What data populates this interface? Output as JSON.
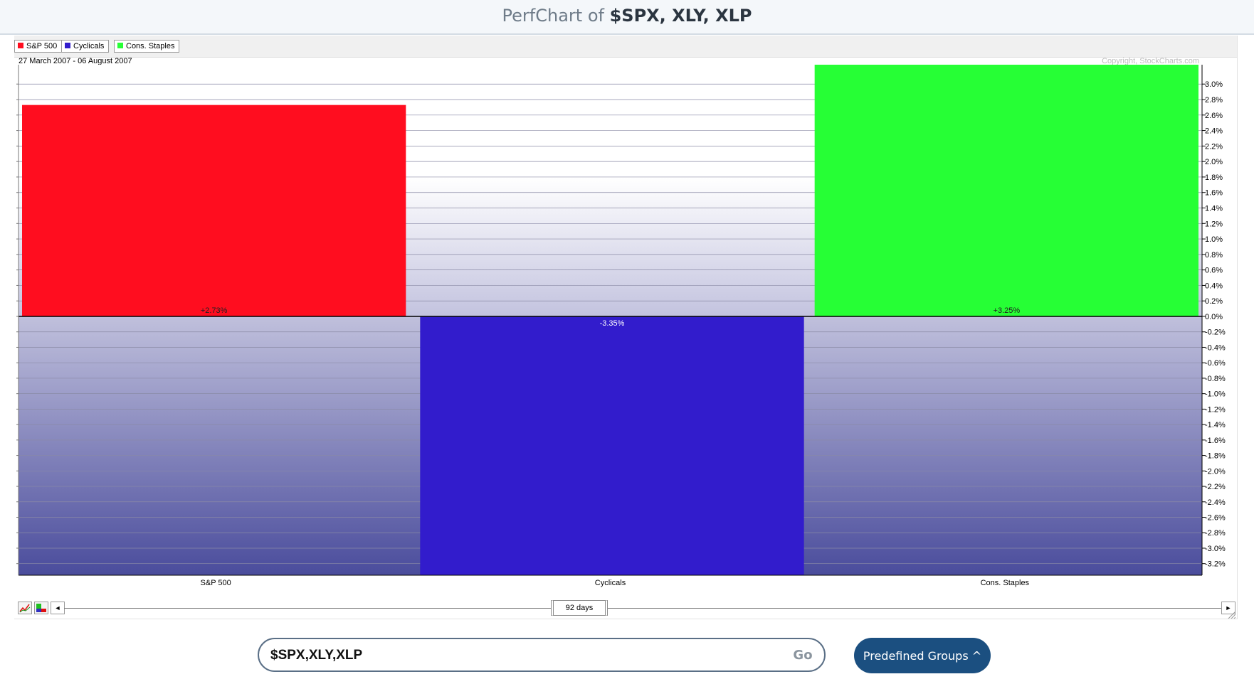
{
  "header": {
    "title_prefix": "PerfChart of",
    "title_symbols": "$SPX, XLY, XLP"
  },
  "legend": {
    "items": [
      {
        "label": "S&P 500",
        "color": "#ff0d1f"
      },
      {
        "label": "Cyclicals",
        "color": "#321ccc"
      },
      {
        "label": "Cons. Staples",
        "color": "#26ff35"
      }
    ]
  },
  "date_range": "27 March 2007 - 06 August 2007",
  "copyright": "Copyright, StockCharts.com",
  "chart_data": {
    "type": "bar",
    "categories": [
      "S&P 500",
      "Cyclicals",
      "Cons. Staples"
    ],
    "values": [
      2.73,
      -3.35,
      3.25
    ],
    "value_labels": [
      "+2.73%",
      "-3.35%",
      "+3.25%"
    ],
    "colors": [
      "#ff0d1f",
      "#321ccc",
      "#26ff35"
    ],
    "ylim": [
      -3.35,
      3.25
    ],
    "yticks": [
      3.0,
      2.8,
      2.6,
      2.4,
      2.2,
      2.0,
      1.8,
      1.6,
      1.4,
      1.2,
      1.0,
      0.8,
      0.6,
      0.4,
      0.2,
      0.0,
      -0.2,
      -0.4,
      -0.6,
      -0.8,
      -1.0,
      -1.2,
      -1.4,
      -1.6,
      -1.8,
      -2.0,
      -2.2,
      -2.4,
      -2.6,
      -2.8,
      -3.0,
      -3.2
    ],
    "ytick_labels": [
      "3.0%",
      "2.8%",
      "2.6%",
      "2.4%",
      "2.2%",
      "2.0%",
      "1.8%",
      "1.6%",
      "1.4%",
      "1.2%",
      "1.0%",
      "0.8%",
      "0.6%",
      "0.4%",
      "0.2%",
      "0.0%",
      "-0.2%",
      "-0.4%",
      "-0.6%",
      "-0.8%",
      "-1.0%",
      "-1.2%",
      "-1.4%",
      "-1.6%",
      "-1.8%",
      "-2.0%",
      "-2.2%",
      "-2.4%",
      "-2.6%",
      "-2.8%",
      "-3.0%",
      "-3.2%"
    ],
    "grid": true,
    "axis_position": "right",
    "title": "",
    "xlabel": "",
    "ylabel": ""
  },
  "slider": {
    "period_label": "92 days",
    "left_arrow": "◄",
    "right_arrow": "►"
  },
  "controls": {
    "symbol_value": "$SPX,XLY,XLP",
    "go_label": "Go",
    "predefined_label": "Predefined Groups ^"
  }
}
